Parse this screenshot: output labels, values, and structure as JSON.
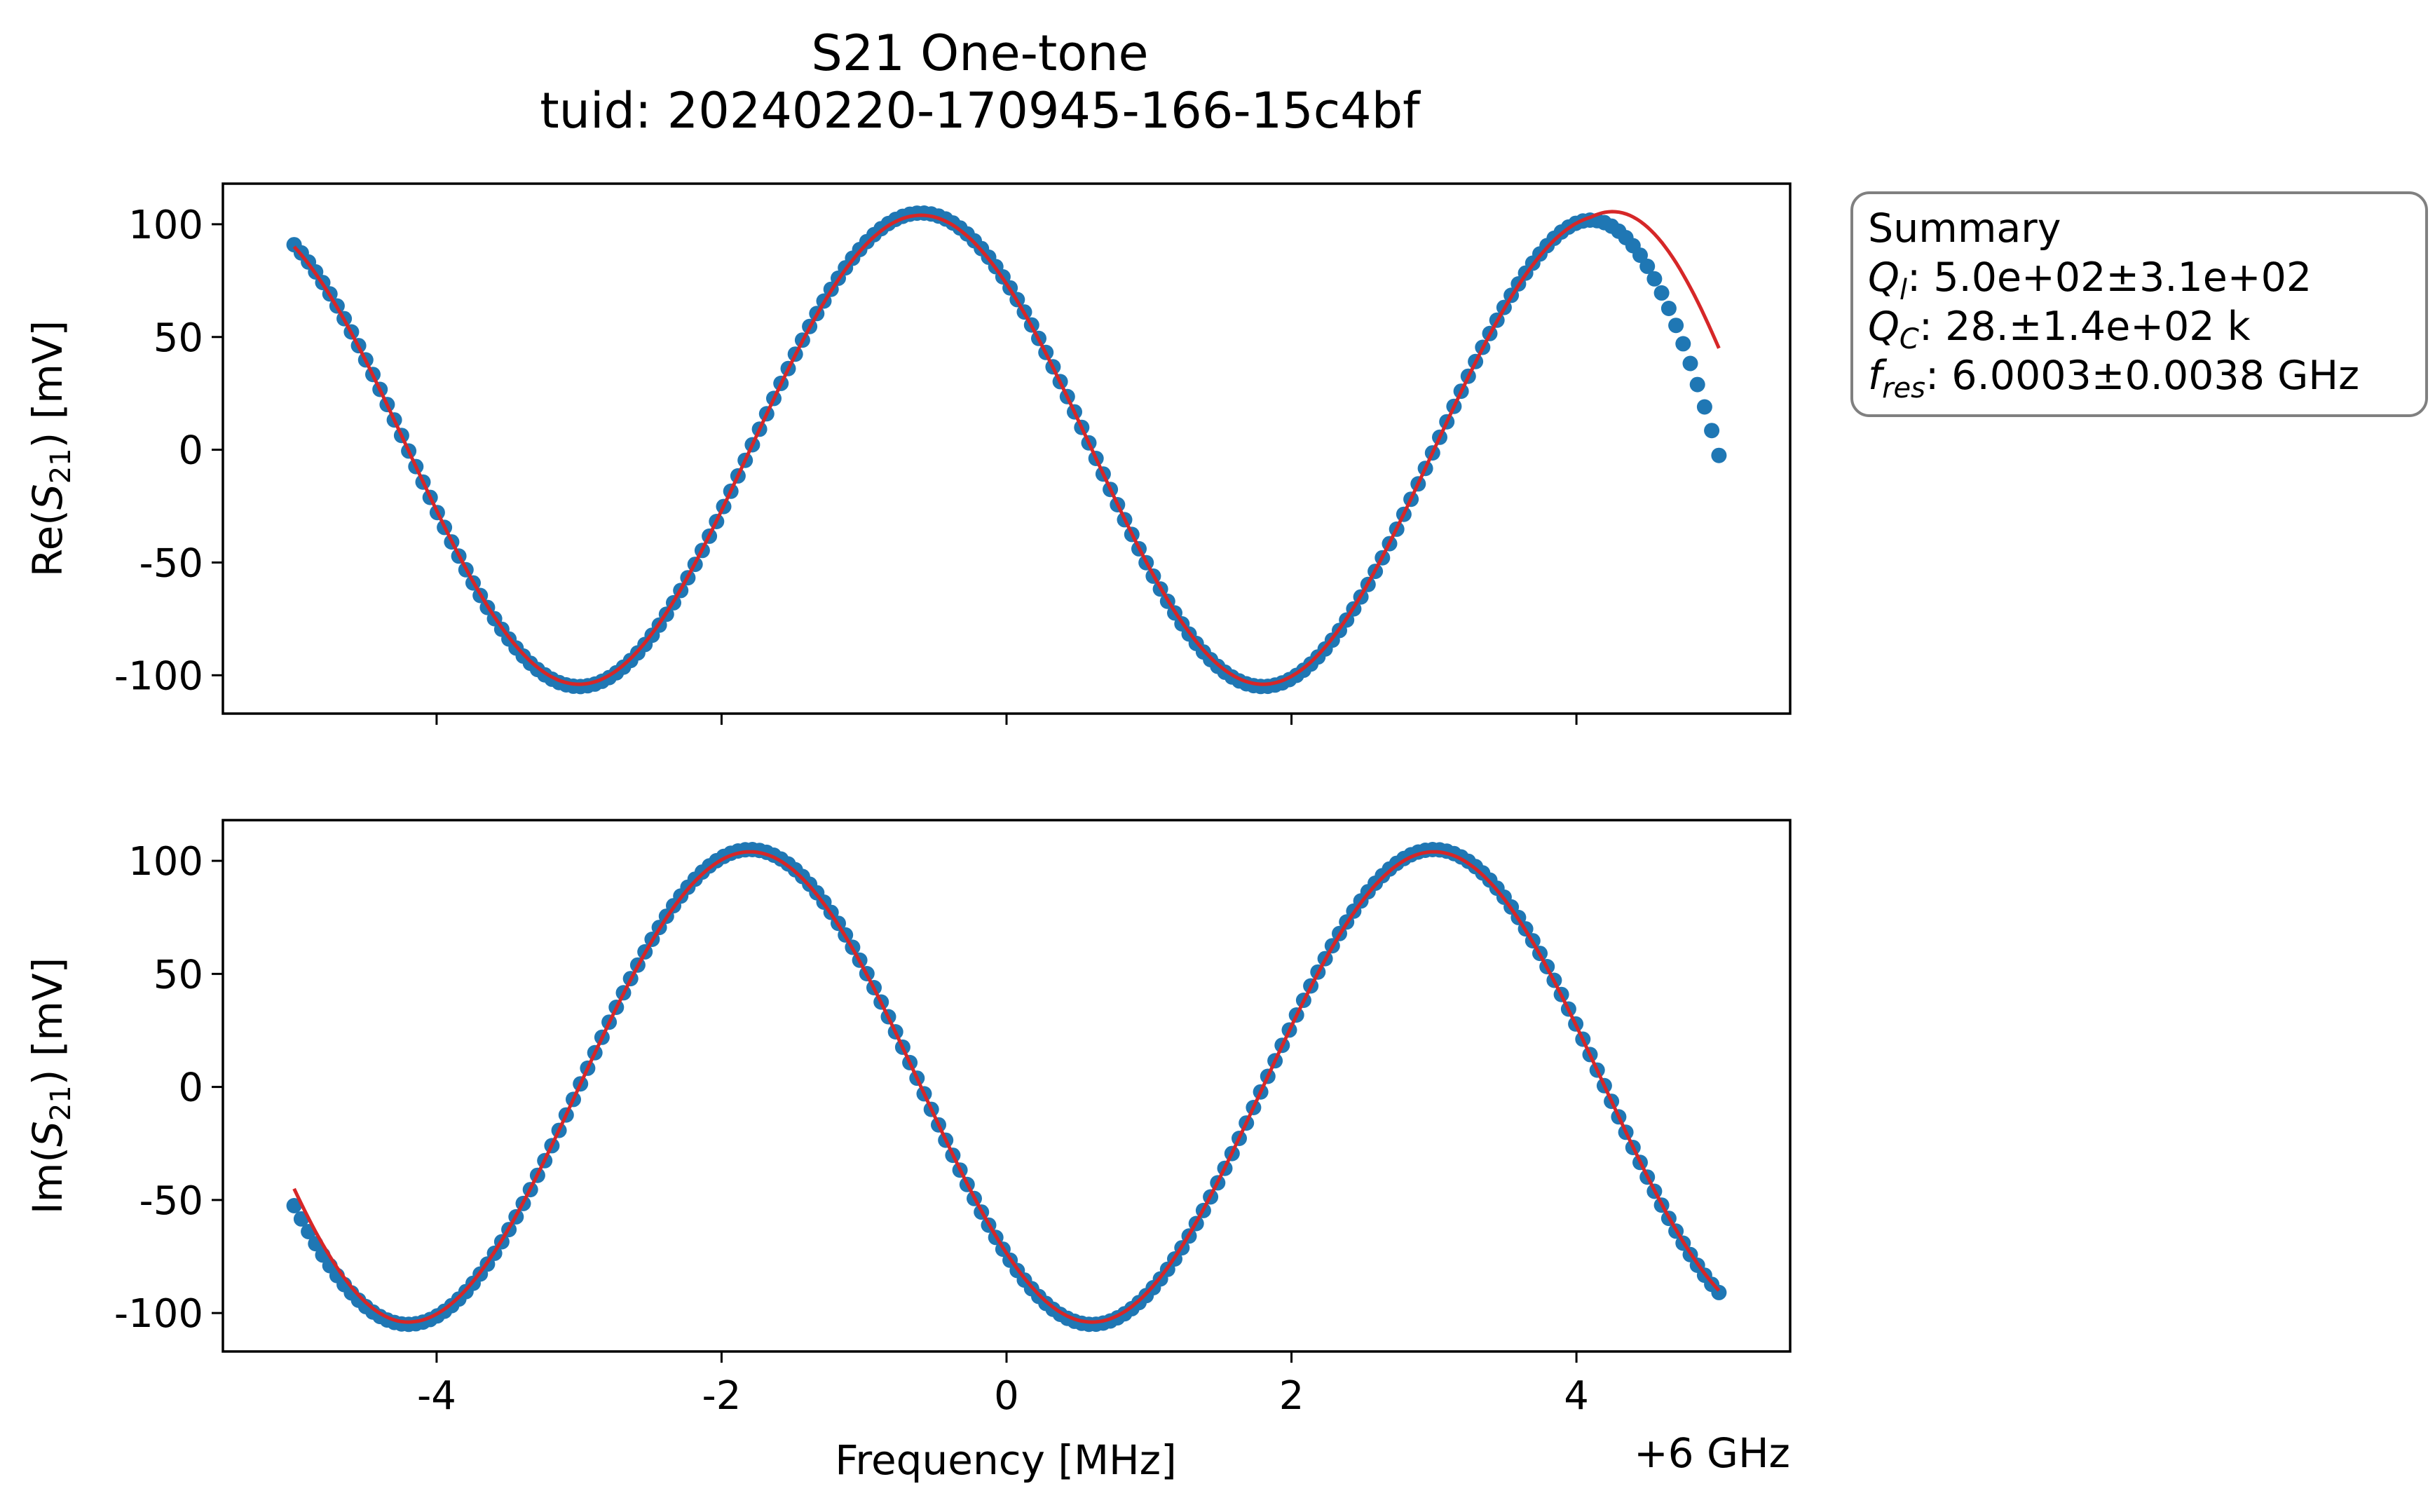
{
  "chart_data": {
    "type": "scatter",
    "title": "S21 One-tone",
    "subtitle": "tuid: 20240220-170945-166-15c4bf",
    "xlabel": "Frequency [MHz]",
    "x_offset_label": "+6 GHz",
    "xlim": [
      -5.5,
      5.5
    ],
    "xticks": [
      -4,
      -2,
      0,
      2,
      4
    ],
    "xtick_labels": [
      "-4",
      "-2",
      "0",
      "2",
      "4"
    ],
    "grid": false,
    "marker_color": "#1f77b4",
    "fit_color": "#d62728",
    "panels": [
      {
        "id": "real",
        "ylabel": {
          "prefix": "Re(",
          "sym": "S",
          "sub": "21",
          "suffix": ") [mV]"
        },
        "ylim": [
          -117,
          118
        ],
        "yticks": [
          100,
          50,
          0,
          -50,
          -100
        ],
        "ytick_labels": [
          "100",
          "50",
          "0",
          "-50",
          "-100"
        ],
        "show_xtick_labels": false,
        "data_model": {
          "amplitude_mV": 105,
          "period_MHz": 4.8,
          "peak_at_MHz": -0.6,
          "x_start_MHz": -5.0,
          "x_end_MHz": 5.0,
          "num_points": 200,
          "end_droop": true
        },
        "fit_model": {
          "amplitude_mV": 104,
          "period_MHz": 4.8,
          "peak_at_MHz": -0.6,
          "end_value_mV": 45
        }
      },
      {
        "id": "imag",
        "ylabel": {
          "prefix": "Im(",
          "sym": "S",
          "sub": "21",
          "suffix": ") [mV]"
        },
        "ylim": [
          -117,
          118
        ],
        "yticks": [
          100,
          50,
          0,
          -50,
          -100
        ],
        "ytick_labels": [
          "100",
          "50",
          "0",
          "-50",
          "-100"
        ],
        "show_xtick_labels": true,
        "data_model": {
          "amplitude_mV": 105,
          "period_MHz": 4.8,
          "peak_at_MHz": -1.8,
          "x_start_MHz": -5.0,
          "x_end_MHz": 5.0,
          "num_points": 200,
          "end_droop": false
        },
        "fit_model": {
          "amplitude_mV": 104,
          "period_MHz": 4.8,
          "peak_at_MHz": -1.8,
          "start_value_mV": -45
        }
      }
    ],
    "summary_box": {
      "heading": "Summary",
      "lines": [
        {
          "sym": "Q",
          "sub": "l",
          "value": ": 5.0e+02±3.1e+02"
        },
        {
          "sym": "Q",
          "sub": "C",
          "value": ": 28.±1.4e+02 k"
        },
        {
          "sym": "f",
          "sub": "res",
          "value": ": 6.0003±0.0038 GHz"
        }
      ]
    }
  }
}
